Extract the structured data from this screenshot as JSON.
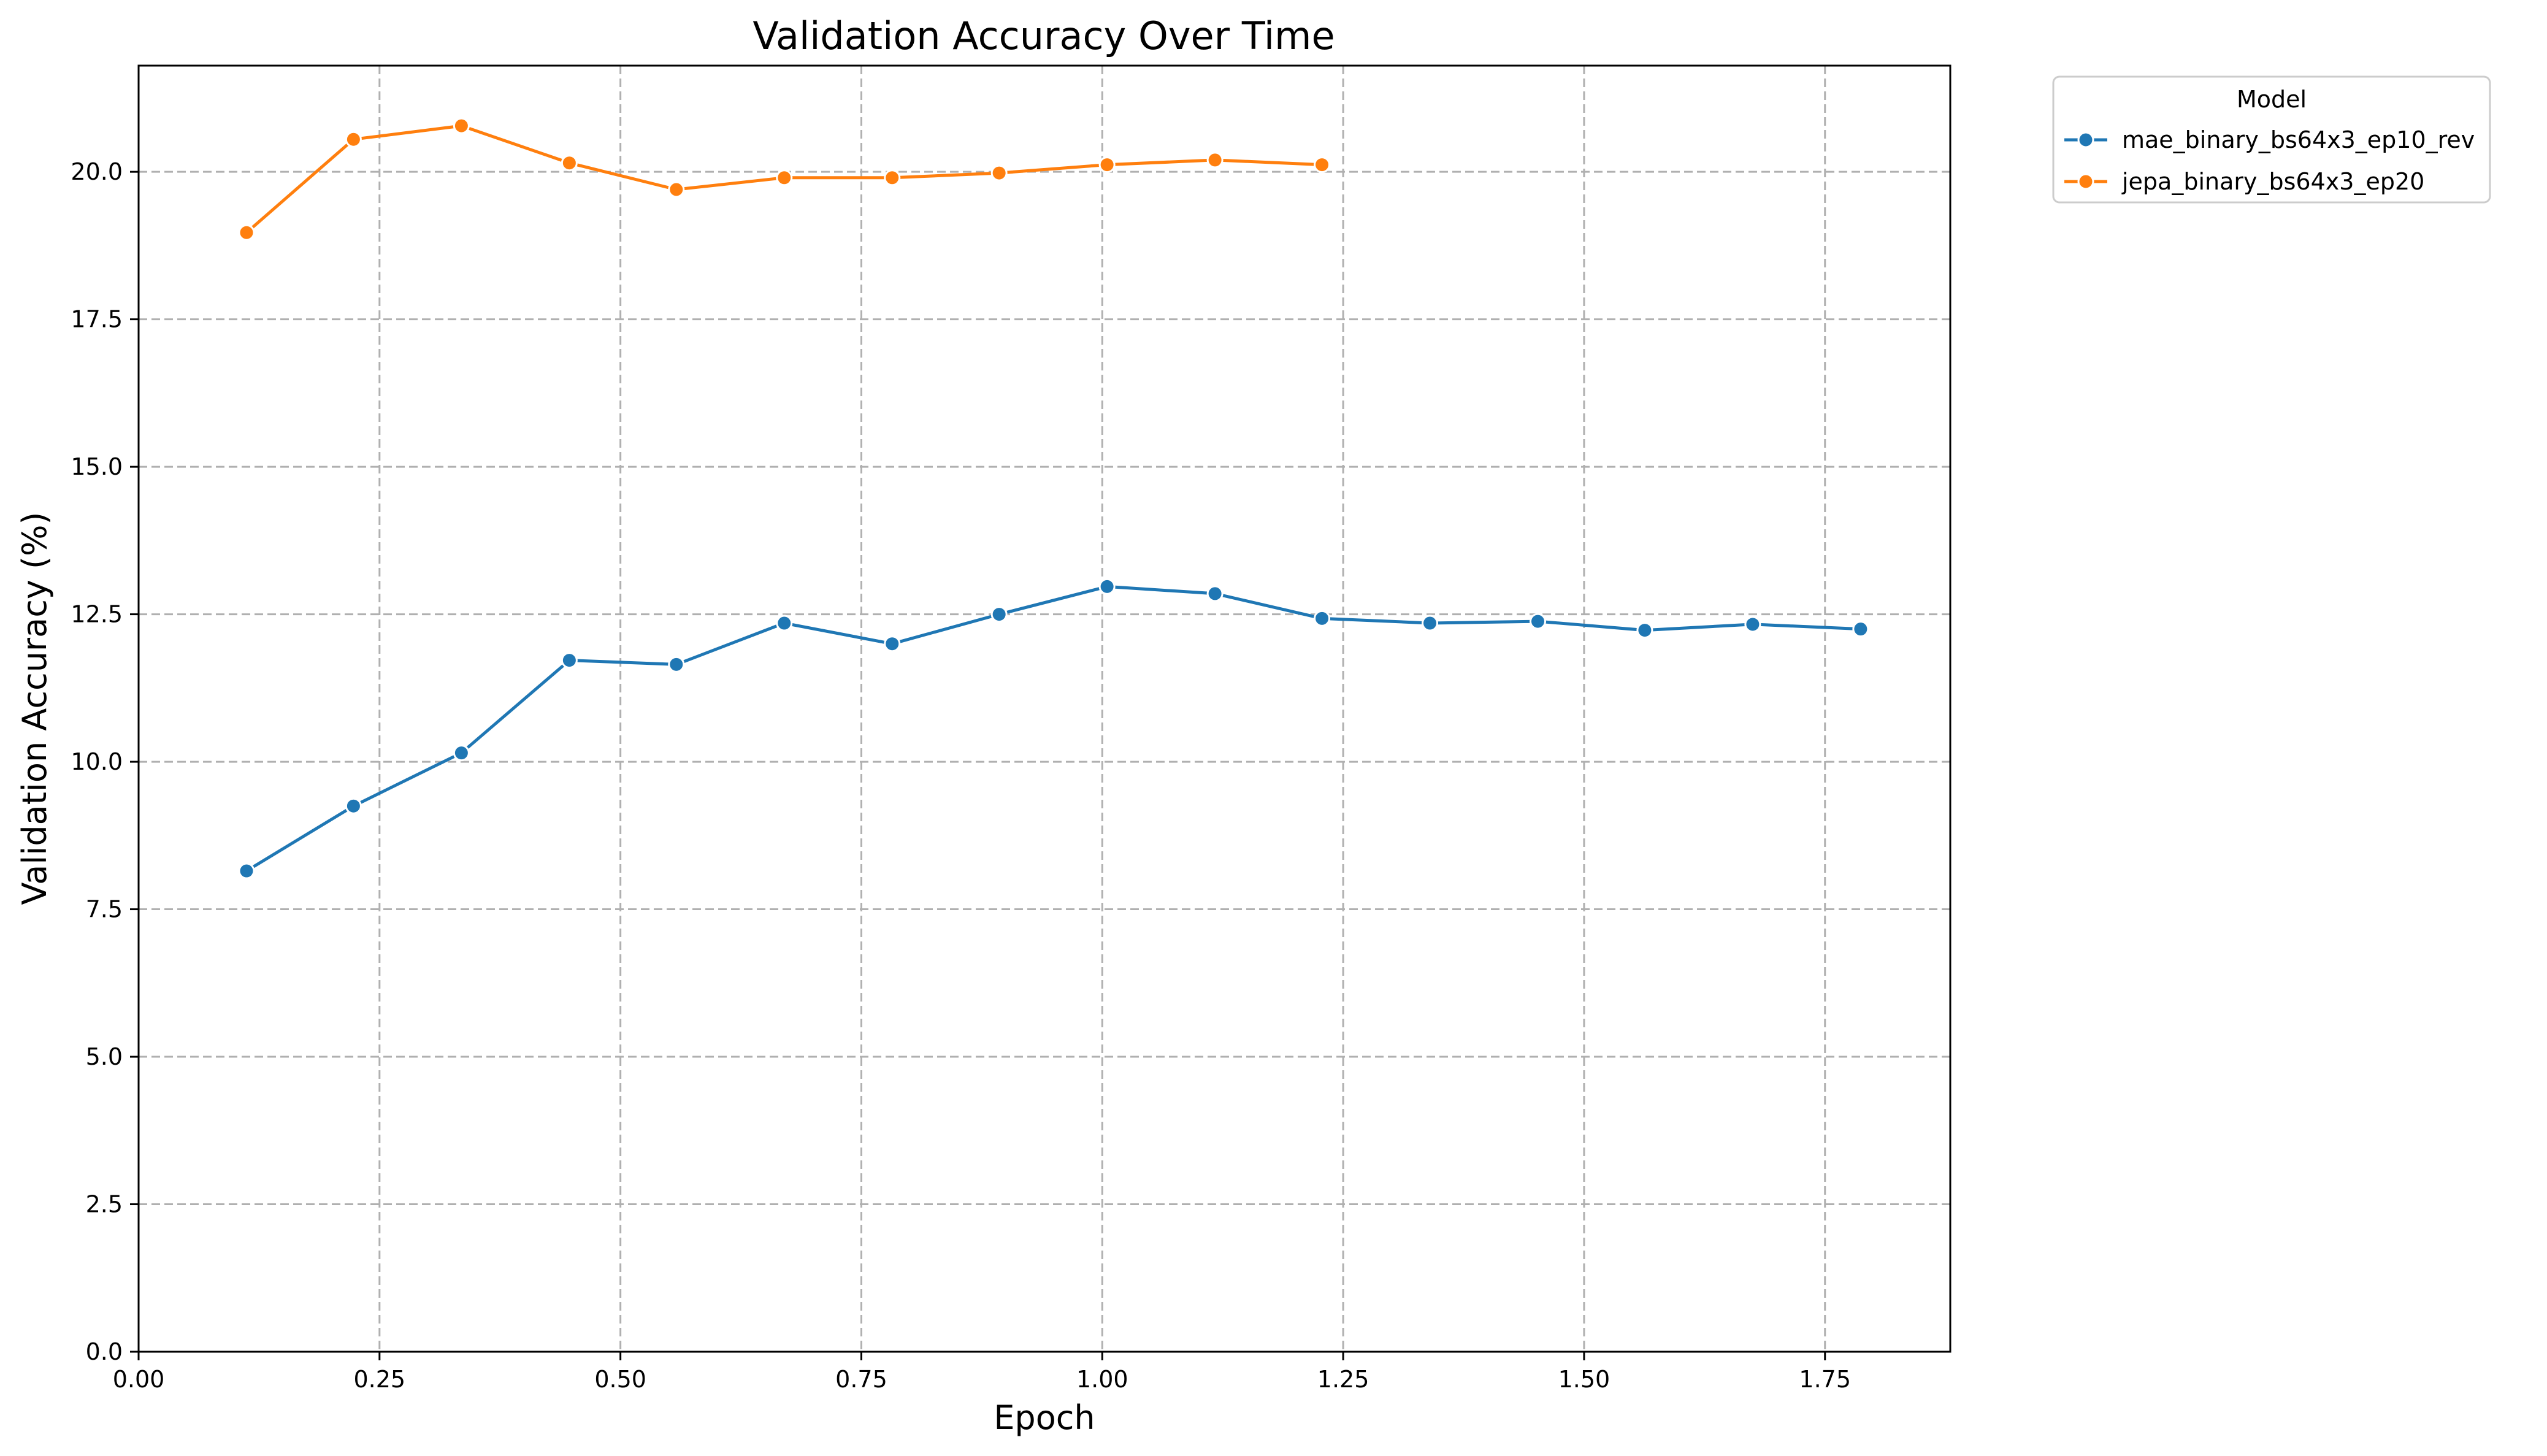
{
  "chart_data": {
    "type": "line",
    "title": "Validation Accuracy Over Time",
    "xlabel": "Epoch",
    "ylabel": "Validation Accuracy (%)",
    "xlim": [
      0.0,
      1.88
    ],
    "ylim": [
      0.0,
      21.8
    ],
    "xticks": [
      0.0,
      0.25,
      0.5,
      0.75,
      1.0,
      1.25,
      1.5,
      1.75
    ],
    "xtick_labels": [
      "0.00",
      "0.25",
      "0.50",
      "0.75",
      "1.00",
      "1.25",
      "1.50",
      "1.75"
    ],
    "yticks": [
      0.0,
      2.5,
      5.0,
      7.5,
      10.0,
      12.5,
      15.0,
      17.5,
      20.0
    ],
    "ytick_labels": [
      "0.0",
      "2.5",
      "5.0",
      "7.5",
      "10.0",
      "12.5",
      "15.0",
      "17.5",
      "20.0"
    ],
    "grid": true,
    "legend": {
      "title": "Model",
      "placement": "outside-top-right"
    },
    "series": [
      {
        "name": "mae_binary_bs64x3_ep10_rev",
        "color": "#1f77b4",
        "x": [
          0.112,
          0.223,
          0.335,
          0.447,
          0.558,
          0.67,
          0.782,
          0.893,
          1.005,
          1.117,
          1.228,
          1.34,
          1.452,
          1.563,
          1.675,
          1.787
        ],
        "y": [
          8.15,
          9.25,
          10.15,
          11.72,
          11.65,
          12.35,
          12.0,
          12.5,
          12.97,
          12.85,
          12.43,
          12.35,
          12.38,
          12.23,
          12.33,
          12.25
        ]
      },
      {
        "name": "jepa_binary_bs64x3_ep20",
        "color": "#ff7f0e",
        "x": [
          0.112,
          0.223,
          0.335,
          0.447,
          0.558,
          0.67,
          0.782,
          0.893,
          1.005,
          1.117,
          1.228
        ],
        "y": [
          18.97,
          20.55,
          20.78,
          20.15,
          19.7,
          19.9,
          19.9,
          19.98,
          20.12,
          20.2,
          20.12
        ]
      }
    ]
  }
}
